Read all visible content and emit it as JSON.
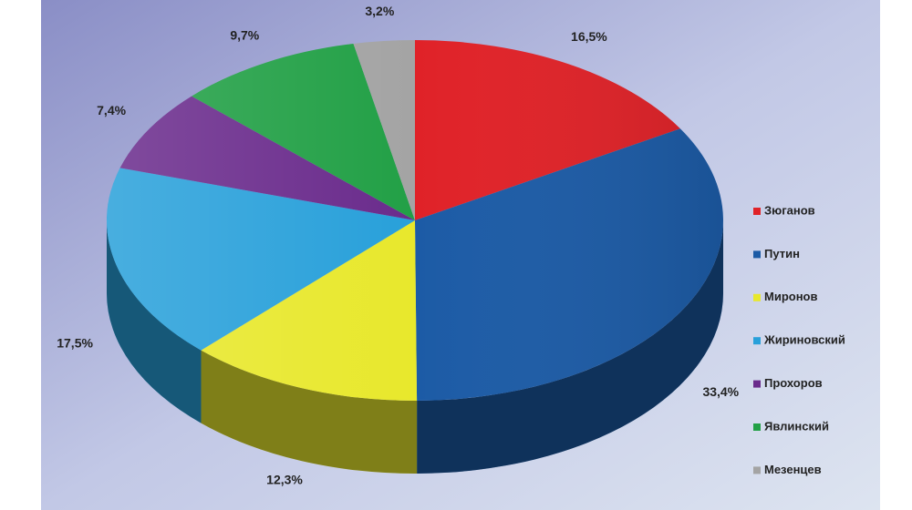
{
  "chart_data": {
    "type": "pie",
    "categories": [
      "Зюганов",
      "Путин",
      "Миронов",
      "Жириновский",
      "Прохоров",
      "Явлинский",
      "Мезенцев"
    ],
    "values": [
      16.5,
      33.4,
      12.3,
      17.5,
      7.4,
      9.7,
      3.2
    ],
    "value_labels": [
      "16,5%",
      "33,4%",
      "12,3%",
      "17,5%",
      "7,4%",
      "9,7%",
      "3,2%"
    ],
    "colors": [
      "#e02228",
      "#1c5ba6",
      "#e8e82c",
      "#28a0da",
      "#6a2b8c",
      "#22a046",
      "#a4a4a4"
    ],
    "legend": "right"
  }
}
